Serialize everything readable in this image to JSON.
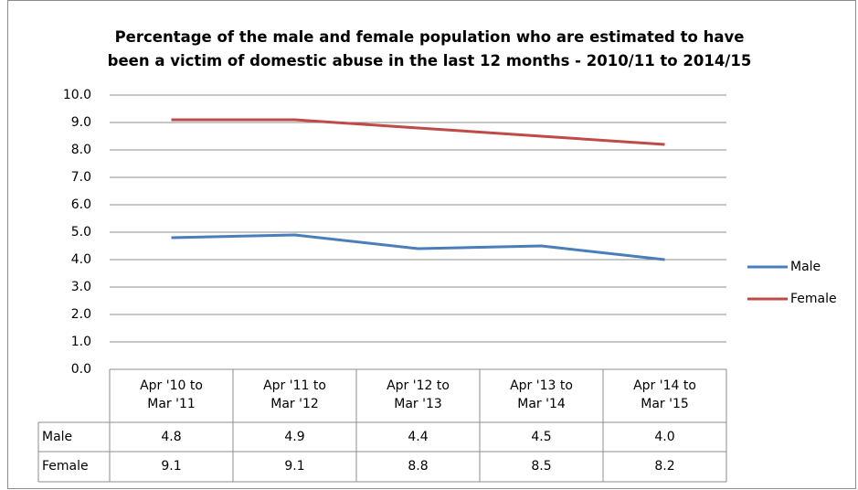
{
  "chart_data": {
    "type": "line",
    "title": "Percentage of the male and female population who are estimated to have\nbeen a victim of domestic abuse in the last 12 months - 2010/11 to 2014/15",
    "categories": [
      "Apr '10 to\nMar '11",
      "Apr '11 to\nMar '12",
      "Apr '12 to\nMar '13",
      "Apr '13 to\nMar '14",
      "Apr '14 to\nMar '15"
    ],
    "series": [
      {
        "name": "Male",
        "color": "#4a7ebb",
        "values": [
          4.8,
          4.9,
          4.4,
          4.5,
          4.0
        ],
        "value_labels": [
          "4.8",
          "4.9",
          "4.4",
          "4.5",
          "4.0"
        ]
      },
      {
        "name": "Female",
        "color": "#be4b48",
        "values": [
          9.1,
          9.1,
          8.8,
          8.5,
          8.2
        ],
        "value_labels": [
          "9.1",
          "9.1",
          "8.8",
          "8.5",
          "8.2"
        ]
      }
    ],
    "ylim": [
      0,
      10
    ],
    "yticks": [
      {
        "value": 0,
        "label": "0.0"
      },
      {
        "value": 1,
        "label": "1.0"
      },
      {
        "value": 2,
        "label": "2.0"
      },
      {
        "value": 3,
        "label": "3.0"
      },
      {
        "value": 4,
        "label": "4.0"
      },
      {
        "value": 5,
        "label": "5.0"
      },
      {
        "value": 6,
        "label": "6.0"
      },
      {
        "value": 7,
        "label": "7.0"
      },
      {
        "value": 8,
        "label": "8.0"
      },
      {
        "value": 9,
        "label": "9.0"
      },
      {
        "value": 10,
        "label": "10.0"
      }
    ],
    "grid": true,
    "legend": "right",
    "data_table": true
  }
}
